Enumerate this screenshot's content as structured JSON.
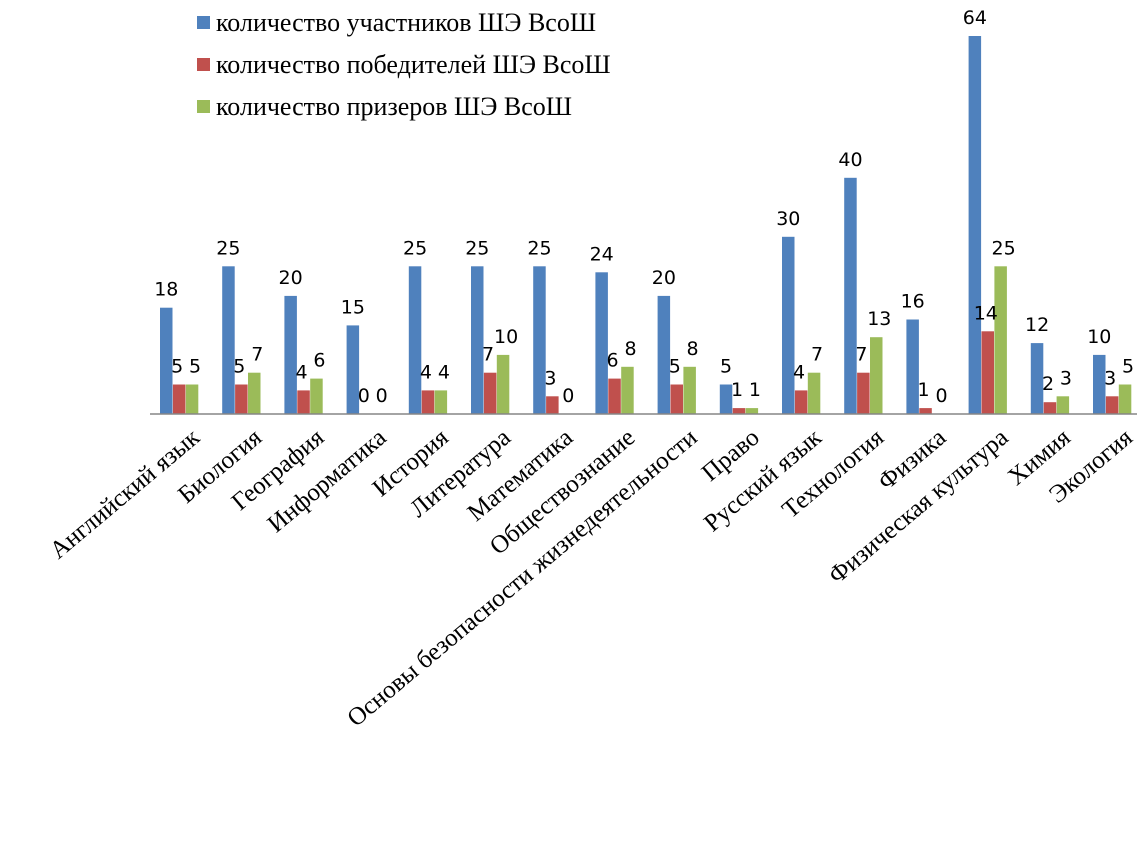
{
  "chart_data": {
    "type": "bar",
    "title": "",
    "xlabel": "",
    "ylabel": "",
    "ylim": [
      0,
      64
    ],
    "grid": false,
    "legend_position": "top",
    "categories": [
      "Английский язык",
      "Биология",
      "География",
      "Информатика",
      "История",
      "Литература",
      "Математика",
      "Обществознание",
      "Основы безопасности жизнедеятельности",
      "Право",
      "Русский язык",
      "Технология",
      "Физика",
      "Физическая культура",
      "Химия",
      "Экология"
    ],
    "series": [
      {
        "name": "количество участников ШЭ ВсоШ",
        "color": "#4F81BD",
        "values": [
          18,
          25,
          20,
          15,
          25,
          25,
          25,
          24,
          20,
          5,
          30,
          40,
          16,
          64,
          12,
          10
        ]
      },
      {
        "name": "количество победителей ШЭ ВсоШ",
        "color": "#C0504D",
        "values": [
          5,
          5,
          4,
          0,
          4,
          7,
          3,
          6,
          5,
          1,
          4,
          7,
          1,
          14,
          2,
          3
        ]
      },
      {
        "name": "количество призеров ШЭ ВсоШ",
        "color": "#9BBB59",
        "values": [
          5,
          7,
          6,
          0,
          4,
          10,
          0,
          8,
          8,
          1,
          7,
          13,
          0,
          25,
          3,
          5
        ]
      }
    ]
  }
}
